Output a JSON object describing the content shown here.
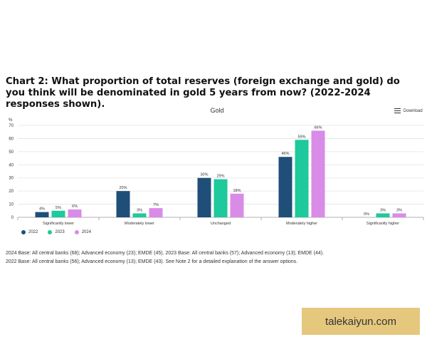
{
  "page": {
    "title": "Chart 2: What proportion of total reserves (foreign exchange and gold) do you think will be denominated in gold 5 years from now? (2022-2024 responses shown).",
    "download_label": "Download",
    "footnote_1": "2024 Base: All central banks (68); Advanced economy (23); EMDE (45). 2023 Base: All central banks (57); Advanced economy (13); EMDE (44).",
    "footnote_2": "2022 Base: All central banks (56); Advanced economy (13); EMDE (43). See Note 2 for a detailed explanation of the answer options.",
    "brand": "talekaiyun.com",
    "download_icon": "menu-icon"
  },
  "chart_data": {
    "type": "bar",
    "title": "Gold",
    "ylabel": "%",
    "ylim": [
      0,
      70
    ],
    "yticks": [
      0,
      10,
      20,
      30,
      40,
      50,
      60,
      70
    ],
    "grid": true,
    "legend_position": "bottom-left",
    "categories": [
      "Significantly lower",
      "Moderately lower",
      "Unchanged",
      "Moderately higher",
      "Significantly higher"
    ],
    "series": [
      {
        "name": "2022",
        "color": "#1f4e79",
        "values": [
          4,
          20,
          30,
          46,
          0
        ],
        "labels": [
          "4%",
          "20%",
          "30%",
          "46%",
          "0%"
        ]
      },
      {
        "name": "2023",
        "color": "#1ec99b",
        "values": [
          5,
          3,
          29,
          59,
          3
        ],
        "labels": [
          "5%",
          "3%",
          "29%",
          "59%",
          "3%"
        ]
      },
      {
        "name": "2024",
        "color": "#d98be8",
        "values": [
          6,
          7,
          18,
          66,
          3
        ],
        "labels": [
          "6%",
          "7%",
          "18%",
          "66%",
          "3%"
        ]
      }
    ]
  }
}
